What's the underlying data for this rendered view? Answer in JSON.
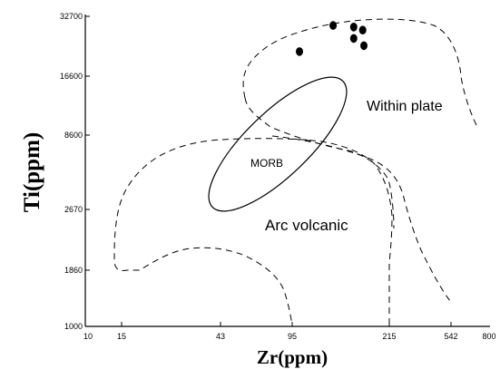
{
  "chart_data": {
    "type": "scatter",
    "title": "",
    "xlabel": "Zr(ppm)",
    "ylabel": "Ti(ppm)",
    "x_ticks": [
      10,
      15,
      43,
      95,
      215,
      542,
      800
    ],
    "y_ticks": [
      1000,
      1860,
      2670,
      8600,
      16600,
      32700
    ],
    "scale": "log-log",
    "xlim": [
      10,
      800
    ],
    "ylim": [
      1000,
      32700
    ],
    "grid": false,
    "region_labels": {
      "within_plate": "Within plate",
      "morb": "MORB",
      "arc_volcanic": "Arc volcanic"
    },
    "points": [
      {
        "x": 88,
        "y": 22000
      },
      {
        "x": 123,
        "y": 29500
      },
      {
        "x": 151,
        "y": 29000
      },
      {
        "x": 151,
        "y": 25500
      },
      {
        "x": 165,
        "y": 28000
      },
      {
        "x": 167,
        "y": 23500
      }
    ]
  }
}
